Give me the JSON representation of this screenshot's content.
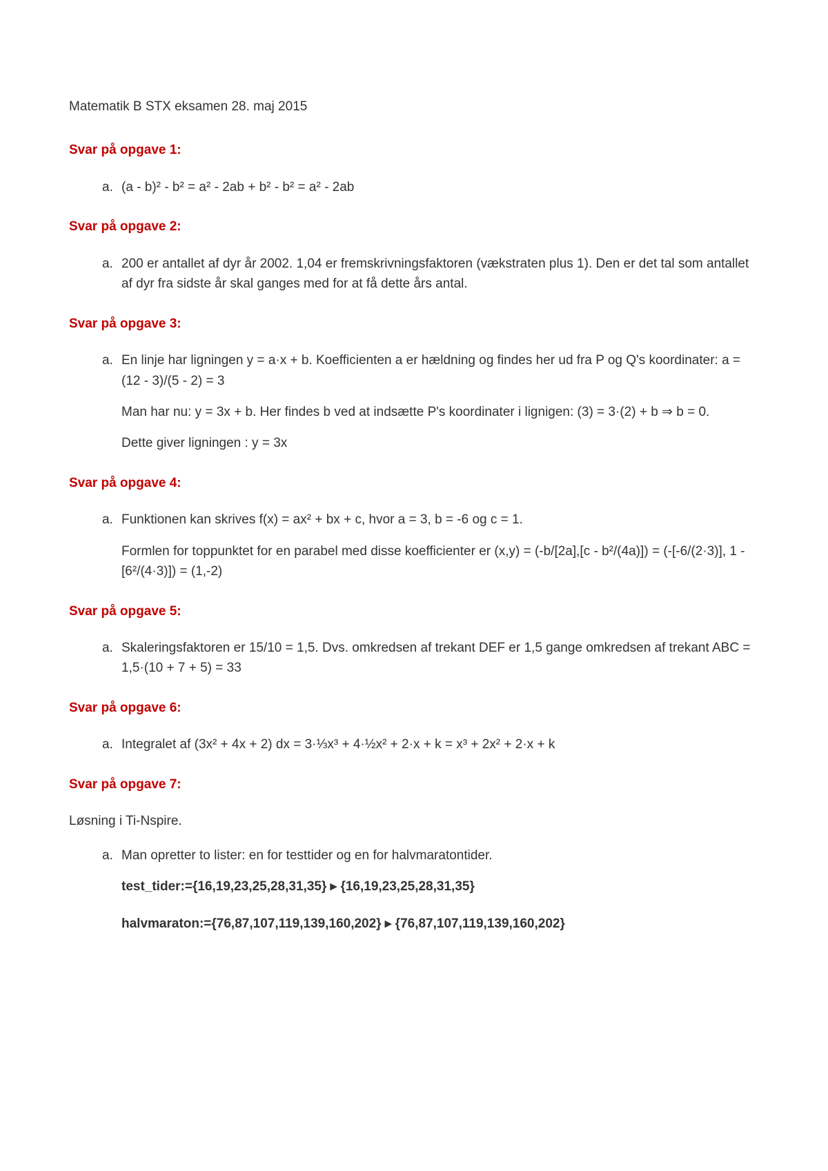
{
  "doc_title": "Matematik B STX eksamen 28. maj 2015",
  "heading_color": "#c00000",
  "text_color": "#333333",
  "sections": {
    "s1": {
      "heading": "Svar på opgave 1:",
      "marker": "a.",
      "p1": "(a - b)² - b² = a² - 2ab + b² - b² = a² - 2ab"
    },
    "s2": {
      "heading": "Svar på opgave 2:",
      "marker": "a.",
      "p1": "200 er antallet af dyr år 2002. 1,04 er fremskrivningsfaktoren (vækstraten plus 1). Den er det tal som antallet af dyr fra sidste år skal ganges med for at få dette års antal."
    },
    "s3": {
      "heading": "Svar på opgave 3:",
      "marker": "a.",
      "p1": "En linje har ligningen y = a·x + b. Koefficienten a er hældning og findes her ud fra P og Q's koordinater: a = (12 - 3)/(5 - 2) = 3",
      "p2": "Man har nu: y = 3x + b. Her findes b ved at indsætte P's koordinater i lignigen: (3) = 3·(2) + b ⇒ b = 0.",
      "p3": "Dette giver ligningen : y = 3x"
    },
    "s4": {
      "heading": "Svar på opgave 4:",
      "marker": "a.",
      "p1": "Funktionen kan skrives f(x) = ax² + bx + c, hvor a = 3, b = -6 og c = 1.",
      "p2": "Formlen for toppunktet for en parabel med disse koefficienter er (x,y) = (-b/[2a],[c - b²/(4a)]) = (-[-6/(2·3)], 1 - [6²/(4·3)]) = (1,-2)"
    },
    "s5": {
      "heading": "Svar på opgave 5:",
      "marker": "a.",
      "p1": "Skaleringsfaktoren er 15/10 = 1,5. Dvs. omkredsen af trekant DEF er 1,5 gange omkredsen af trekant ABC = 1,5·(10 + 7 + 5) = 33"
    },
    "s6": {
      "heading": "Svar på opgave 6:",
      "marker": "a.",
      "p1": "Integralet af (3x² + 4x + 2) dx = 3·⅓x³ + 4·½x² + 2·x + k = x³ + 2x² + 2·x + k"
    },
    "s7": {
      "heading": "Svar på opgave 7:",
      "intro": "Løsning i Ti-Nspire.",
      "marker": "a.",
      "p1": "Man opretter to lister: en for testtider og en for halvmaratontider.",
      "code1": "test_tider:={16,19,23,25,28,31,35} ▸ {16,19,23,25,28,31,35}",
      "code2": "halvmaraton:={76,87,107,119,139,160,202} ▸ {76,87,107,119,139,160,202}"
    }
  }
}
